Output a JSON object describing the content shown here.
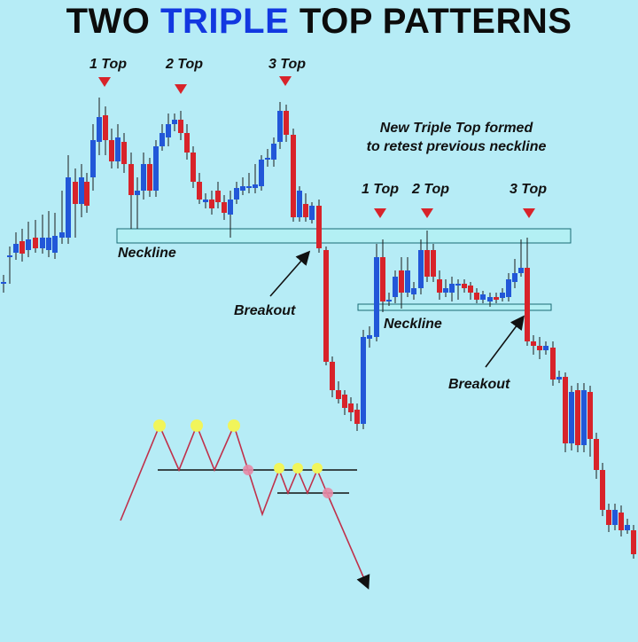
{
  "title": {
    "part1": "TWO",
    "part2": "TRIPLE",
    "part3": "TOP PATTERNS"
  },
  "colors": {
    "background": "#b6ecf6",
    "bull": "#2257d8",
    "bear": "#d8232a",
    "zone": "#b3f0f4",
    "marker": "#d8232a",
    "accent": "#1238e0"
  },
  "pattern1": {
    "top1": "1 Top",
    "top2": "2 Top",
    "top3": "3 Top",
    "neckline": "Neckline",
    "breakout": "Breakout"
  },
  "pattern2": {
    "note_line1": "New Triple Top formed",
    "note_line2": "to retest previous neckline",
    "top1": "1 Top",
    "top2": "2 Top",
    "top3": "3 Top",
    "neckline": "Neckline",
    "breakout": "Breakout"
  },
  "candles": [
    [
      4,
      318,
      318,
      310,
      330,
      "bull"
    ],
    [
      11,
      290,
      288,
      278,
      320,
      "bull"
    ],
    [
      18,
      275,
      285,
      262,
      293,
      "bull"
    ],
    [
      25,
      272,
      286,
      258,
      295,
      "bear"
    ],
    [
      32,
      270,
      282,
      250,
      290,
      "bull"
    ],
    [
      40,
      268,
      280,
      248,
      285,
      "bear"
    ],
    [
      48,
      280,
      268,
      242,
      286,
      "bull"
    ],
    [
      55,
      282,
      268,
      238,
      290,
      "bull"
    ],
    [
      62,
      285,
      266,
      240,
      292,
      "bull"
    ],
    [
      70,
      268,
      262,
      215,
      275,
      "bull"
    ],
    [
      77,
      268,
      200,
      175,
      275,
      "bull"
    ],
    [
      85,
      205,
      230,
      190,
      268,
      "bear"
    ],
    [
      92,
      230,
      200,
      185,
      245,
      "bull"
    ],
    [
      98,
      232,
      205,
      195,
      240,
      "bear"
    ],
    [
      105,
      200,
      158,
      140,
      215,
      "bull"
    ],
    [
      112,
      160,
      132,
      110,
      175,
      "bull"
    ],
    [
      119,
      130,
      158,
      120,
      175,
      "bear"
    ],
    [
      126,
      158,
      182,
      145,
      190,
      "bear"
    ],
    [
      133,
      182,
      155,
      140,
      190,
      "bull"
    ],
    [
      140,
      160,
      185,
      150,
      195,
      "bear"
    ],
    [
      148,
      185,
      220,
      172,
      258,
      "bear"
    ],
    [
      155,
      220,
      215,
      200,
      258,
      "bull"
    ],
    [
      162,
      215,
      185,
      172,
      225,
      "bull"
    ],
    [
      169,
      185,
      215,
      178,
      222,
      "bear"
    ],
    [
      176,
      215,
      165,
      158,
      222,
      "bull"
    ],
    [
      183,
      165,
      150,
      140,
      170,
      "bull"
    ],
    [
      190,
      155,
      140,
      128,
      165,
      "bull"
    ],
    [
      197,
      140,
      135,
      128,
      148,
      "bull"
    ],
    [
      204,
      135,
      150,
      125,
      158,
      "bear"
    ],
    [
      211,
      150,
      172,
      140,
      180,
      "bear"
    ],
    [
      218,
      172,
      205,
      165,
      212,
      "bear"
    ],
    [
      225,
      205,
      225,
      195,
      230,
      "bear"
    ],
    [
      232,
      228,
      225,
      218,
      235,
      "bull"
    ],
    [
      239,
      225,
      235,
      215,
      242,
      "bear"
    ],
    [
      246,
      215,
      228,
      205,
      235,
      "bear"
    ],
    [
      253,
      228,
      240,
      220,
      248,
      "bear"
    ],
    [
      260,
      242,
      225,
      215,
      268,
      "bull"
    ],
    [
      267,
      225,
      212,
      205,
      230,
      "bull"
    ],
    [
      274,
      215,
      210,
      200,
      220,
      "bull"
    ],
    [
      281,
      212,
      210,
      195,
      218,
      "bull"
    ],
    [
      288,
      212,
      208,
      185,
      218,
      "bull"
    ],
    [
      295,
      210,
      180,
      175,
      215,
      "bull"
    ],
    [
      302,
      180,
      178,
      168,
      188,
      "bull"
    ],
    [
      309,
      180,
      162,
      155,
      188,
      "bull"
    ],
    [
      316,
      160,
      125,
      115,
      168,
      "bull"
    ],
    [
      323,
      125,
      152,
      118,
      160,
      "bear"
    ],
    [
      331,
      152,
      245,
      145,
      250,
      "bear"
    ],
    [
      338,
      245,
      215,
      210,
      250,
      "bull"
    ],
    [
      345,
      230,
      245,
      218,
      250,
      "bear"
    ],
    [
      352,
      248,
      232,
      228,
      252,
      "bull"
    ],
    [
      360,
      232,
      280,
      225,
      285,
      "bear"
    ],
    [
      368,
      282,
      408,
      278,
      412,
      "bear"
    ],
    [
      375,
      408,
      440,
      402,
      448,
      "bear"
    ],
    [
      382,
      440,
      450,
      430,
      455,
      "bear"
    ],
    [
      389,
      445,
      460,
      440,
      468,
      "bear"
    ],
    [
      396,
      455,
      465,
      448,
      475,
      "bear"
    ],
    [
      403,
      462,
      478,
      455,
      486,
      "bear"
    ],
    [
      410,
      478,
      380,
      372,
      484,
      "bull"
    ],
    [
      417,
      382,
      378,
      368,
      392,
      "bull"
    ],
    [
      425,
      380,
      290,
      275,
      385,
      "bull"
    ],
    [
      432,
      290,
      340,
      270,
      352,
      "bear"
    ],
    [
      439,
      340,
      338,
      330,
      345,
      "bull"
    ],
    [
      446,
      335,
      312,
      305,
      342,
      "bull"
    ],
    [
      453,
      305,
      330,
      290,
      348,
      "bear"
    ],
    [
      460,
      330,
      305,
      290,
      335,
      "bull"
    ],
    [
      467,
      332,
      325,
      318,
      338,
      "bull"
    ],
    [
      475,
      325,
      282,
      270,
      332,
      "bull"
    ],
    [
      482,
      282,
      312,
      260,
      318,
      "bear"
    ],
    [
      489,
      282,
      312,
      275,
      318,
      "bear"
    ],
    [
      496,
      315,
      330,
      305,
      338,
      "bear"
    ],
    [
      503,
      330,
      325,
      315,
      335,
      "bull"
    ],
    [
      510,
      330,
      320,
      312,
      340,
      "bull"
    ],
    [
      517,
      322,
      320,
      315,
      338,
      "bull"
    ],
    [
      524,
      320,
      325,
      315,
      330,
      "bear"
    ],
    [
      531,
      322,
      330,
      318,
      338,
      "bear"
    ],
    [
      538,
      330,
      338,
      325,
      342,
      "bear"
    ],
    [
      545,
      338,
      332,
      328,
      342,
      "bull"
    ],
    [
      553,
      340,
      335,
      330,
      346,
      "bull"
    ],
    [
      560,
      335,
      338,
      330,
      342,
      "bear"
    ],
    [
      567,
      336,
      330,
      325,
      340,
      "bull"
    ],
    [
      574,
      335,
      315,
      308,
      340,
      "bull"
    ],
    [
      581,
      318,
      308,
      292,
      325,
      "bull"
    ],
    [
      588,
      308,
      302,
      270,
      312,
      "bull"
    ],
    [
      595,
      302,
      385,
      268,
      390,
      "bear"
    ],
    [
      602,
      385,
      390,
      378,
      400,
      "bear"
    ],
    [
      609,
      390,
      395,
      380,
      405,
      "bear"
    ],
    [
      616,
      395,
      390,
      385,
      400,
      "bull"
    ],
    [
      624,
      392,
      428,
      385,
      435,
      "bear"
    ],
    [
      631,
      428,
      425,
      418,
      432,
      "bull"
    ],
    [
      638,
      425,
      500,
      420,
      510,
      "bear"
    ],
    [
      645,
      500,
      442,
      435,
      508,
      "bull"
    ],
    [
      652,
      440,
      502,
      432,
      510,
      "bear"
    ],
    [
      659,
      502,
      440,
      432,
      510,
      "bull"
    ],
    [
      666,
      442,
      495,
      435,
      515,
      "bear"
    ],
    [
      673,
      495,
      530,
      488,
      540,
      "bear"
    ],
    [
      680,
      530,
      575,
      522,
      582,
      "bear"
    ],
    [
      687,
      575,
      592,
      568,
      600,
      "bear"
    ],
    [
      694,
      592,
      575,
      568,
      598,
      "bull"
    ],
    [
      701,
      578,
      598,
      570,
      605,
      "bear"
    ],
    [
      708,
      598,
      592,
      585,
      602,
      "bull"
    ],
    [
      715,
      598,
      625,
      592,
      630,
      "bear"
    ]
  ]
}
